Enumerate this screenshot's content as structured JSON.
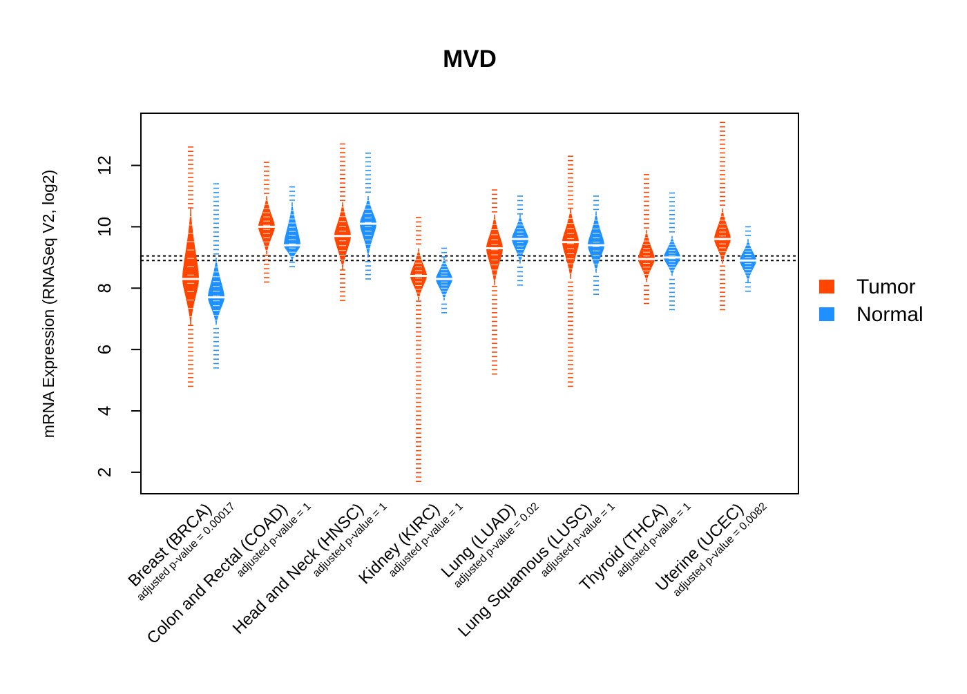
{
  "chart_data": {
    "type": "bean",
    "title": "MVD",
    "xlabel": "",
    "ylabel": "mRNA Expression (RNASeq V2, log2)",
    "ylim": [
      1.3,
      13.7
    ],
    "yticks": [
      2,
      4,
      6,
      8,
      10,
      12
    ],
    "reference_lines": [
      8.9,
      9.05
    ],
    "legend": {
      "position": "right",
      "entries": [
        {
          "label": "Tumor",
          "color": "#ff4500"
        },
        {
          "label": "Normal",
          "color": "#1e90ff"
        }
      ]
    },
    "categories": [
      {
        "label": "Breast (BRCA)",
        "pvalue": "adjusted p-value = 0.00017"
      },
      {
        "label": "Colon and Rectal (COAD)",
        "pvalue": "adjusted p-value = 1"
      },
      {
        "label": "Head and Neck (HNSC)",
        "pvalue": "adjusted p-value = 1"
      },
      {
        "label": "Kidney (KIRC)",
        "pvalue": "adjusted p-value = 1"
      },
      {
        "label": "Lung (LUAD)",
        "pvalue": "adjusted p-value = 0.02"
      },
      {
        "label": "Lung Squamous (LUSC)",
        "pvalue": "adjusted p-value = 1"
      },
      {
        "label": "Thyroid (THCA)",
        "pvalue": "adjusted p-value = 1"
      },
      {
        "label": "Uterine (UCEC)",
        "pvalue": "adjusted p-value = 0.0082"
      }
    ],
    "series": [
      {
        "name": "Tumor",
        "color": "#ff4500",
        "beans": [
          {
            "min": 4.8,
            "max": 12.6,
            "median": 8.3,
            "core_low": 6.8,
            "core_high": 10.6
          },
          {
            "min": 8.2,
            "max": 12.1,
            "median": 10.0,
            "core_low": 9.1,
            "core_high": 11.0
          },
          {
            "min": 7.6,
            "max": 12.7,
            "median": 9.7,
            "core_low": 8.6,
            "core_high": 10.8
          },
          {
            "min": 1.7,
            "max": 10.3,
            "median": 8.4,
            "core_low": 7.6,
            "core_high": 9.3
          },
          {
            "min": 5.2,
            "max": 11.2,
            "median": 9.3,
            "core_low": 8.1,
            "core_high": 10.4
          },
          {
            "min": 4.8,
            "max": 12.3,
            "median": 9.5,
            "core_low": 8.3,
            "core_high": 10.6
          },
          {
            "min": 7.5,
            "max": 11.7,
            "median": 8.95,
            "core_low": 8.2,
            "core_high": 9.9
          },
          {
            "min": 7.3,
            "max": 13.4,
            "median": 9.6,
            "core_low": 8.8,
            "core_high": 10.6
          }
        ]
      },
      {
        "name": "Normal",
        "color": "#1e90ff",
        "beans": [
          {
            "min": 5.4,
            "max": 11.4,
            "median": 7.7,
            "core_low": 6.8,
            "core_high": 9.0
          },
          {
            "min": 8.7,
            "max": 11.3,
            "median": 9.4,
            "core_low": 8.9,
            "core_high": 10.8
          },
          {
            "min": 8.3,
            "max": 12.4,
            "median": 10.1,
            "core_low": 9.0,
            "core_high": 11.0
          },
          {
            "min": 7.2,
            "max": 9.3,
            "median": 8.3,
            "core_low": 7.6,
            "core_high": 9.0
          },
          {
            "min": 8.1,
            "max": 11.0,
            "median": 9.6,
            "core_low": 8.8,
            "core_high": 10.4
          },
          {
            "min": 7.8,
            "max": 11.0,
            "median": 9.4,
            "core_low": 8.5,
            "core_high": 10.5
          },
          {
            "min": 7.3,
            "max": 11.1,
            "median": 9.0,
            "core_low": 8.4,
            "core_high": 9.7
          },
          {
            "min": 7.9,
            "max": 10.0,
            "median": 8.9,
            "core_low": 8.2,
            "core_high": 9.6
          }
        ]
      }
    ]
  }
}
